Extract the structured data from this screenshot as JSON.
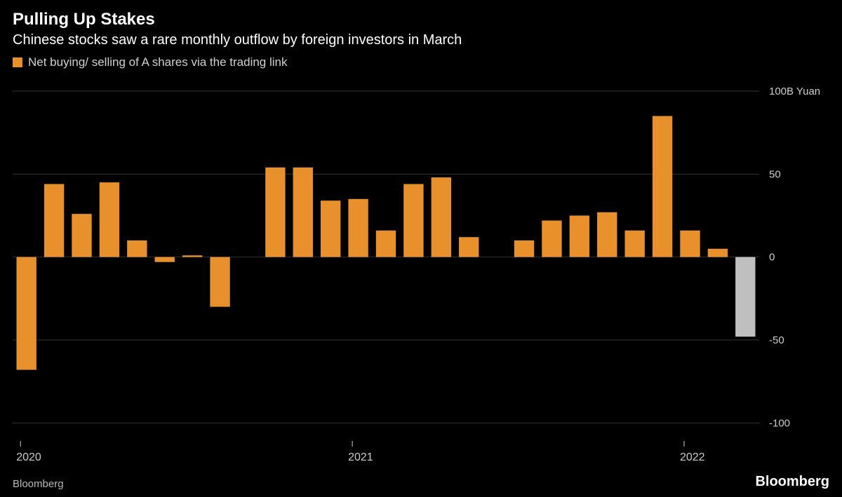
{
  "header": {
    "title": "Pulling Up Stakes",
    "subtitle": "Chinese stocks saw a rare monthly outflow by foreign investors in March"
  },
  "legend": {
    "swatch_color": "#e8902c",
    "label": "Net buying/ selling of A shares via the trading link"
  },
  "chart": {
    "type": "bar",
    "background_color": "#000000",
    "bar_color": "#e8902c",
    "highlight_color": "#bfbfbf",
    "grid_color": "#333333",
    "axis_text_color": "#cccccc",
    "y_unit_label": "100B Yuan",
    "ylim": [
      -110,
      100
    ],
    "yticks": [
      -100,
      -50,
      0,
      50,
      100
    ],
    "ytick_labels": [
      "-100",
      "-50",
      "0",
      "50",
      "100"
    ],
    "xticks": [
      {
        "index": 0,
        "label": "2020"
      },
      {
        "index": 12,
        "label": "2021"
      },
      {
        "index": 24,
        "label": "2022"
      }
    ],
    "bar_width_ratio": 0.72,
    "values": [
      -68,
      44,
      26,
      45,
      10,
      -3,
      1,
      -30,
      0,
      54,
      54,
      34,
      35,
      16,
      44,
      48,
      12,
      0,
      10,
      22,
      25,
      27,
      16,
      85,
      16,
      5,
      -48
    ],
    "highlight_index": 26
  },
  "footer": {
    "source": "Bloomberg",
    "brand": "Bloomberg"
  }
}
